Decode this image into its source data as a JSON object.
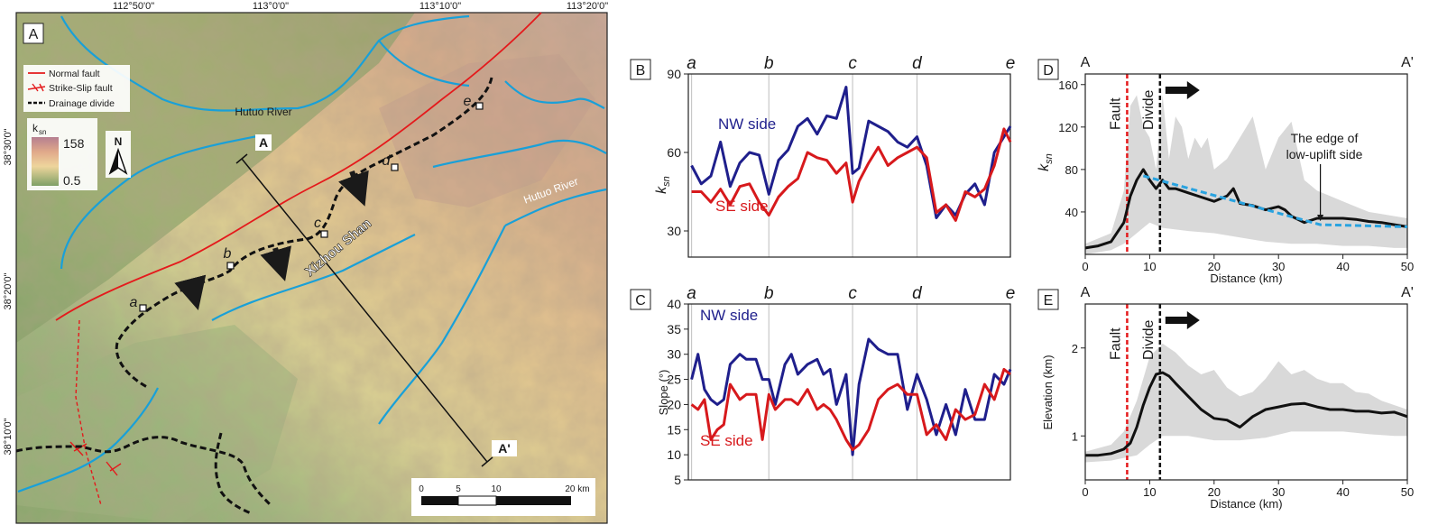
{
  "colors": {
    "ne_blue": "#1f1f8c",
    "se_red": "#d7191c",
    "river": "#19a0d8",
    "fault": "#e41a1c",
    "envelope": "#d9d9d9",
    "trend": "#29a3e0"
  },
  "map": {
    "panel_label": "A",
    "lon_ticks": [
      "112°50'0\"",
      "113°0'0\"",
      "113°10'0\"",
      "113°20'0\""
    ],
    "lat_ticks": [
      "38°30'0\"",
      "38°20'0\"",
      "38°10'0\""
    ],
    "legend": {
      "normal_fault": "Normal fault",
      "strike_slip": "Strike-Slip fault",
      "divide": "Drainage divide"
    },
    "ksn_legend": {
      "title": "k",
      "sub": "sn",
      "max": "158",
      "min": "0.5"
    },
    "north": "N",
    "labels": {
      "hutuo_river_nw": "Hutuo River",
      "hutuo_river_e": "Hutuo River",
      "xizhou_shan": "Xizhou Shan",
      "profile_start": "A",
      "profile_end": "A'"
    },
    "divide_points": [
      "a",
      "b",
      "c",
      "d",
      "e"
    ],
    "scale": {
      "ticks": [
        "0",
        "5",
        "10",
        "20 km"
      ]
    }
  },
  "chart_data": [
    {
      "type": "line",
      "panel": "B",
      "ylabel": "k",
      "ylabel_sub": "sn",
      "ylim": [
        20,
        90
      ],
      "yticks": [
        30,
        60,
        90
      ],
      "xlim": [
        0,
        100
      ],
      "point_labels": [
        {
          "label": "a",
          "x": 1
        },
        {
          "label": "b",
          "x": 25
        },
        {
          "label": "c",
          "x": 51
        },
        {
          "label": "d",
          "x": 71
        },
        {
          "label": "e",
          "x": 100
        }
      ],
      "annotations": {
        "ne": "NW side",
        "se": "SE side"
      },
      "series": [
        {
          "name": "NW side",
          "x": [
            1,
            4,
            7,
            10,
            13,
            16,
            19,
            22,
            25,
            28,
            31,
            34,
            37,
            40,
            43,
            46,
            49,
            51,
            53,
            56,
            59,
            62,
            65,
            68,
            71,
            74,
            77,
            80,
            83,
            86,
            89,
            92,
            95,
            98,
            100
          ],
          "y": [
            55,
            48,
            51,
            64,
            47,
            56,
            60,
            59,
            44,
            57,
            61,
            70,
            73,
            67,
            74,
            73,
            85,
            52,
            54,
            72,
            70,
            68,
            64,
            62,
            66,
            55,
            35,
            40,
            36,
            44,
            48,
            40,
            60,
            66,
            70
          ]
        },
        {
          "name": "SE side",
          "x": [
            1,
            4,
            7,
            10,
            13,
            16,
            19,
            22,
            25,
            28,
            31,
            34,
            37,
            40,
            43,
            46,
            49,
            51,
            53,
            56,
            59,
            62,
            65,
            68,
            71,
            74,
            77,
            80,
            83,
            86,
            89,
            92,
            95,
            98,
            100
          ],
          "y": [
            45,
            45,
            41,
            46,
            40,
            47,
            48,
            41,
            36,
            43,
            47,
            50,
            60,
            58,
            57,
            52,
            56,
            41,
            49,
            56,
            62,
            55,
            58,
            60,
            62,
            58,
            37,
            40,
            34,
            45,
            43,
            46,
            55,
            69,
            64
          ]
        }
      ]
    },
    {
      "type": "line",
      "panel": "C",
      "ylabel": "Slope (°)",
      "ylim": [
        5,
        40
      ],
      "yticks": [
        5,
        10,
        15,
        20,
        25,
        30,
        35,
        40
      ],
      "xlim": [
        0,
        100
      ],
      "point_labels": [
        {
          "label": "a",
          "x": 1
        },
        {
          "label": "b",
          "x": 25
        },
        {
          "label": "c",
          "x": 51
        },
        {
          "label": "d",
          "x": 71
        },
        {
          "label": "e",
          "x": 100
        }
      ],
      "annotations": {
        "ne": "NW side",
        "se": "SE side"
      },
      "series": [
        {
          "name": "NW side",
          "x": [
            1,
            3,
            5,
            7,
            9,
            11,
            13,
            16,
            18,
            21,
            23,
            25,
            27,
            30,
            32,
            34,
            37,
            40,
            42,
            44,
            46,
            49,
            51,
            53,
            56,
            59,
            62,
            65,
            68,
            71,
            74,
            77,
            80,
            83,
            86,
            89,
            92,
            95,
            98,
            100
          ],
          "y": [
            25,
            30,
            23,
            21,
            20,
            21,
            28,
            30,
            29,
            29,
            25,
            25,
            20,
            28,
            30,
            26,
            28,
            29,
            26,
            27,
            20,
            26,
            10,
            24,
            33,
            31,
            30,
            30,
            19,
            26,
            21,
            14,
            20,
            14,
            23,
            17,
            17,
            26,
            24,
            27
          ]
        },
        {
          "name": "SE side",
          "x": [
            1,
            3,
            5,
            7,
            9,
            11,
            13,
            16,
            18,
            21,
            23,
            25,
            27,
            30,
            32,
            34,
            37,
            40,
            42,
            44,
            46,
            49,
            51,
            53,
            56,
            59,
            62,
            65,
            68,
            71,
            74,
            77,
            80,
            83,
            86,
            89,
            92,
            95,
            98,
            100
          ],
          "y": [
            20,
            19,
            21,
            13,
            15,
            16,
            24,
            21,
            22,
            22,
            13,
            22,
            19,
            21,
            21,
            20,
            23,
            19,
            20,
            19,
            17,
            13,
            11,
            12,
            15,
            21,
            23,
            24,
            22,
            22,
            14,
            16,
            13,
            19,
            17,
            18,
            24,
            21,
            27,
            26
          ]
        }
      ]
    },
    {
      "type": "area",
      "panel": "D",
      "profile": {
        "start": "A",
        "end": "A'"
      },
      "xlabel": "Distance (km)",
      "ylabel": "k",
      "ylabel_sub": "sn",
      "xlim": [
        0,
        50
      ],
      "ylim": [
        0,
        170
      ],
      "xticks": [
        0,
        10,
        20,
        30,
        40,
        50
      ],
      "yticks": [
        40,
        80,
        120,
        160
      ],
      "fault_x": 6.5,
      "divide_x": 11.6,
      "labels": {
        "fault": "Fault",
        "divide": "Divide",
        "annotation": [
          "The edge of",
          "low-uplift side"
        ]
      },
      "annotation_x": 36.5,
      "series": [
        {
          "name": "mean",
          "x": [
            0,
            2,
            4,
            6,
            7,
            8,
            9,
            10,
            11,
            12,
            13,
            14,
            16,
            18,
            20,
            22,
            23,
            24,
            26,
            28,
            30,
            31,
            32,
            34,
            36,
            38,
            40,
            42,
            44,
            46,
            48,
            50
          ],
          "y": [
            6,
            8,
            12,
            30,
            55,
            70,
            80,
            70,
            62,
            70,
            62,
            62,
            58,
            54,
            50,
            55,
            62,
            48,
            46,
            42,
            45,
            42,
            36,
            30,
            34,
            34,
            34,
            33,
            31,
            30,
            28,
            26
          ]
        },
        {
          "name": "min",
          "x": [
            0,
            4,
            6,
            8,
            10,
            12,
            16,
            20,
            24,
            28,
            32,
            36,
            40,
            44,
            48,
            50
          ],
          "y": [
            0,
            4,
            10,
            20,
            30,
            25,
            22,
            20,
            16,
            12,
            10,
            10,
            8,
            8,
            6,
            6
          ]
        },
        {
          "name": "max",
          "x": [
            0,
            4,
            6,
            7,
            8,
            9,
            10,
            11,
            12,
            13,
            14,
            15,
            16,
            17,
            18,
            19,
            20,
            22,
            24,
            26,
            28,
            30,
            32,
            34,
            36,
            38,
            40,
            42,
            44,
            46,
            48,
            50
          ],
          "y": [
            10,
            20,
            60,
            140,
            150,
            120,
            110,
            80,
            150,
            90,
            130,
            120,
            90,
            110,
            100,
            110,
            80,
            90,
            110,
            130,
            80,
            110,
            125,
            70,
            60,
            55,
            50,
            45,
            40,
            38,
            36,
            34
          ]
        },
        {
          "name": "trend",
          "x": [
            9,
            36.5,
            50
          ],
          "y": [
            74,
            28,
            26
          ]
        }
      ]
    },
    {
      "type": "area",
      "panel": "E",
      "profile": {
        "start": "A",
        "end": "A'"
      },
      "xlabel": "Distance (km)",
      "ylabel": "Elevation (km)",
      "xlim": [
        0,
        50
      ],
      "ylim": [
        0.5,
        2.5
      ],
      "xticks": [
        0,
        10,
        20,
        30,
        40,
        50
      ],
      "yticks": [
        1,
        2
      ],
      "fault_x": 6.5,
      "divide_x": 11.6,
      "labels": {
        "fault": "Fault",
        "divide": "Divide"
      },
      "series": [
        {
          "name": "mean",
          "x": [
            0,
            2,
            4,
            6,
            7,
            8,
            9,
            10,
            11,
            12,
            13,
            14,
            16,
            18,
            20,
            22,
            24,
            26,
            28,
            30,
            32,
            34,
            36,
            38,
            40,
            42,
            44,
            46,
            48,
            50
          ],
          "y": [
            0.78,
            0.78,
            0.8,
            0.85,
            0.92,
            1.1,
            1.35,
            1.55,
            1.7,
            1.72,
            1.68,
            1.6,
            1.45,
            1.3,
            1.2,
            1.18,
            1.1,
            1.22,
            1.3,
            1.33,
            1.36,
            1.37,
            1.33,
            1.3,
            1.3,
            1.28,
            1.28,
            1.26,
            1.27,
            1.22
          ]
        },
        {
          "name": "min",
          "x": [
            0,
            4,
            6,
            8,
            10,
            12,
            16,
            20,
            24,
            28,
            32,
            36,
            40,
            44,
            48,
            50
          ],
          "y": [
            0.7,
            0.72,
            0.75,
            0.78,
            0.9,
            1.0,
            1.0,
            0.95,
            0.95,
            0.98,
            1.05,
            1.05,
            1.05,
            1.02,
            1.0,
            1.0
          ]
        },
        {
          "name": "max",
          "x": [
            0,
            4,
            6,
            8,
            10,
            12,
            14,
            16,
            18,
            20,
            22,
            24,
            26,
            28,
            30,
            32,
            34,
            36,
            38,
            40,
            42,
            44,
            46,
            48,
            50
          ],
          "y": [
            0.82,
            0.9,
            1.05,
            1.4,
            1.9,
            2.05,
            1.95,
            1.8,
            1.7,
            1.75,
            1.55,
            1.45,
            1.5,
            1.65,
            1.85,
            1.7,
            1.75,
            1.65,
            1.6,
            1.6,
            1.5,
            1.48,
            1.4,
            1.35,
            1.3
          ]
        }
      ]
    }
  ]
}
